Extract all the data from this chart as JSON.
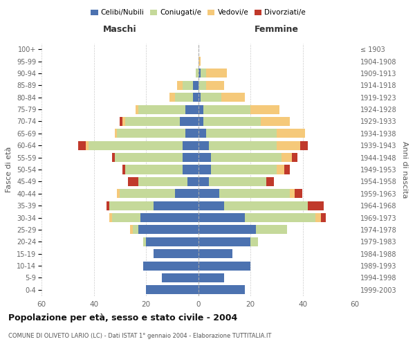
{
  "age_groups": [
    "0-4",
    "5-9",
    "10-14",
    "15-19",
    "20-24",
    "25-29",
    "30-34",
    "35-39",
    "40-44",
    "45-49",
    "50-54",
    "55-59",
    "60-64",
    "65-69",
    "70-74",
    "75-79",
    "80-84",
    "85-89",
    "90-94",
    "95-99",
    "100+"
  ],
  "birth_years": [
    "1999-2003",
    "1994-1998",
    "1989-1993",
    "1984-1988",
    "1979-1983",
    "1974-1978",
    "1969-1973",
    "1964-1968",
    "1959-1963",
    "1954-1958",
    "1949-1953",
    "1944-1948",
    "1939-1943",
    "1934-1938",
    "1929-1933",
    "1924-1928",
    "1919-1923",
    "1914-1918",
    "1909-1913",
    "1904-1908",
    "≤ 1903"
  ],
  "colors": {
    "celibe": "#4C72B0",
    "coniugato": "#C5D99A",
    "vedovo": "#F5C97A",
    "divorziato": "#C0392B"
  },
  "maschi": {
    "celibe": [
      20,
      14,
      21,
      17,
      20,
      23,
      22,
      17,
      9,
      4,
      6,
      6,
      6,
      5,
      7,
      5,
      2,
      2,
      0,
      0,
      0
    ],
    "coniugato": [
      0,
      0,
      0,
      0,
      1,
      2,
      11,
      17,
      21,
      19,
      22,
      26,
      36,
      26,
      21,
      18,
      7,
      4,
      1,
      0,
      0
    ],
    "vedovo": [
      0,
      0,
      0,
      0,
      0,
      1,
      1,
      0,
      1,
      0,
      0,
      0,
      1,
      1,
      1,
      1,
      2,
      2,
      0,
      0,
      0
    ],
    "divorziato": [
      0,
      0,
      0,
      0,
      0,
      0,
      0,
      1,
      0,
      4,
      1,
      1,
      3,
      0,
      1,
      0,
      0,
      0,
      0,
      0,
      0
    ]
  },
  "femmine": {
    "nubile": [
      18,
      10,
      20,
      13,
      20,
      22,
      18,
      10,
      8,
      4,
      5,
      5,
      4,
      3,
      2,
      2,
      1,
      0,
      1,
      0,
      0
    ],
    "coniugata": [
      0,
      0,
      0,
      0,
      3,
      12,
      27,
      32,
      27,
      22,
      25,
      27,
      26,
      27,
      22,
      18,
      8,
      3,
      2,
      0,
      0
    ],
    "vedova": [
      0,
      0,
      0,
      0,
      0,
      0,
      2,
      0,
      2,
      0,
      3,
      4,
      9,
      11,
      11,
      11,
      9,
      7,
      8,
      1,
      0
    ],
    "divorziata": [
      0,
      0,
      0,
      0,
      0,
      0,
      2,
      6,
      3,
      3,
      2,
      2,
      3,
      0,
      0,
      0,
      0,
      0,
      0,
      0,
      0
    ]
  },
  "xlim": 60,
  "title": "Popolazione per età, sesso e stato civile - 2004",
  "subtitle": "COMUNE DI OLIVETO LARIO (LC) - Dati ISTAT 1° gennaio 2004 - Elaborazione TUTTITALIA.IT",
  "xlabel_left": "Maschi",
  "xlabel_right": "Femmine",
  "ylabel_left": "Fasce di età",
  "ylabel_right": "Anni di nascita",
  "legend_labels": [
    "Celibi/Nubili",
    "Coniugati/e",
    "Vedovi/e",
    "Divorziati/e"
  ],
  "bg_color": "#FFFFFF",
  "grid_color": "#CCCCCC",
  "bar_height": 0.75
}
